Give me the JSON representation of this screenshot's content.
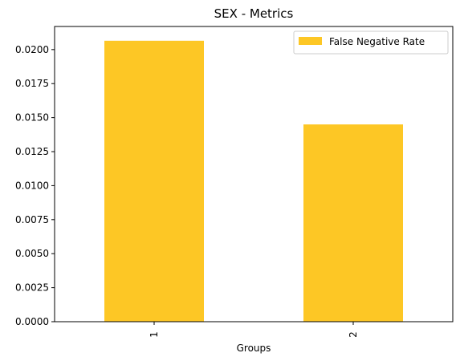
{
  "chart_data": {
    "type": "bar",
    "title": "SEX - Metrics",
    "xlabel": "Groups",
    "ylabel": "",
    "categories": [
      "1",
      "2"
    ],
    "series": [
      {
        "name": "False Negative Rate",
        "values": [
          0.02065,
          0.0145
        ]
      }
    ],
    "ylim": [
      0,
      0.0217
    ],
    "yticks": [
      0.0,
      0.0025,
      0.005,
      0.0075,
      0.01,
      0.0125,
      0.015,
      0.0175,
      0.02
    ],
    "ytick_labels": [
      "0.0000",
      "0.0025",
      "0.0050",
      "0.0075",
      "0.0100",
      "0.0125",
      "0.0150",
      "0.0175",
      "0.0200"
    ],
    "xtick_rotation": "vertical",
    "grid": false,
    "legend_placement": "upper-right",
    "colors": {
      "bar": "#fdc725"
    }
  }
}
